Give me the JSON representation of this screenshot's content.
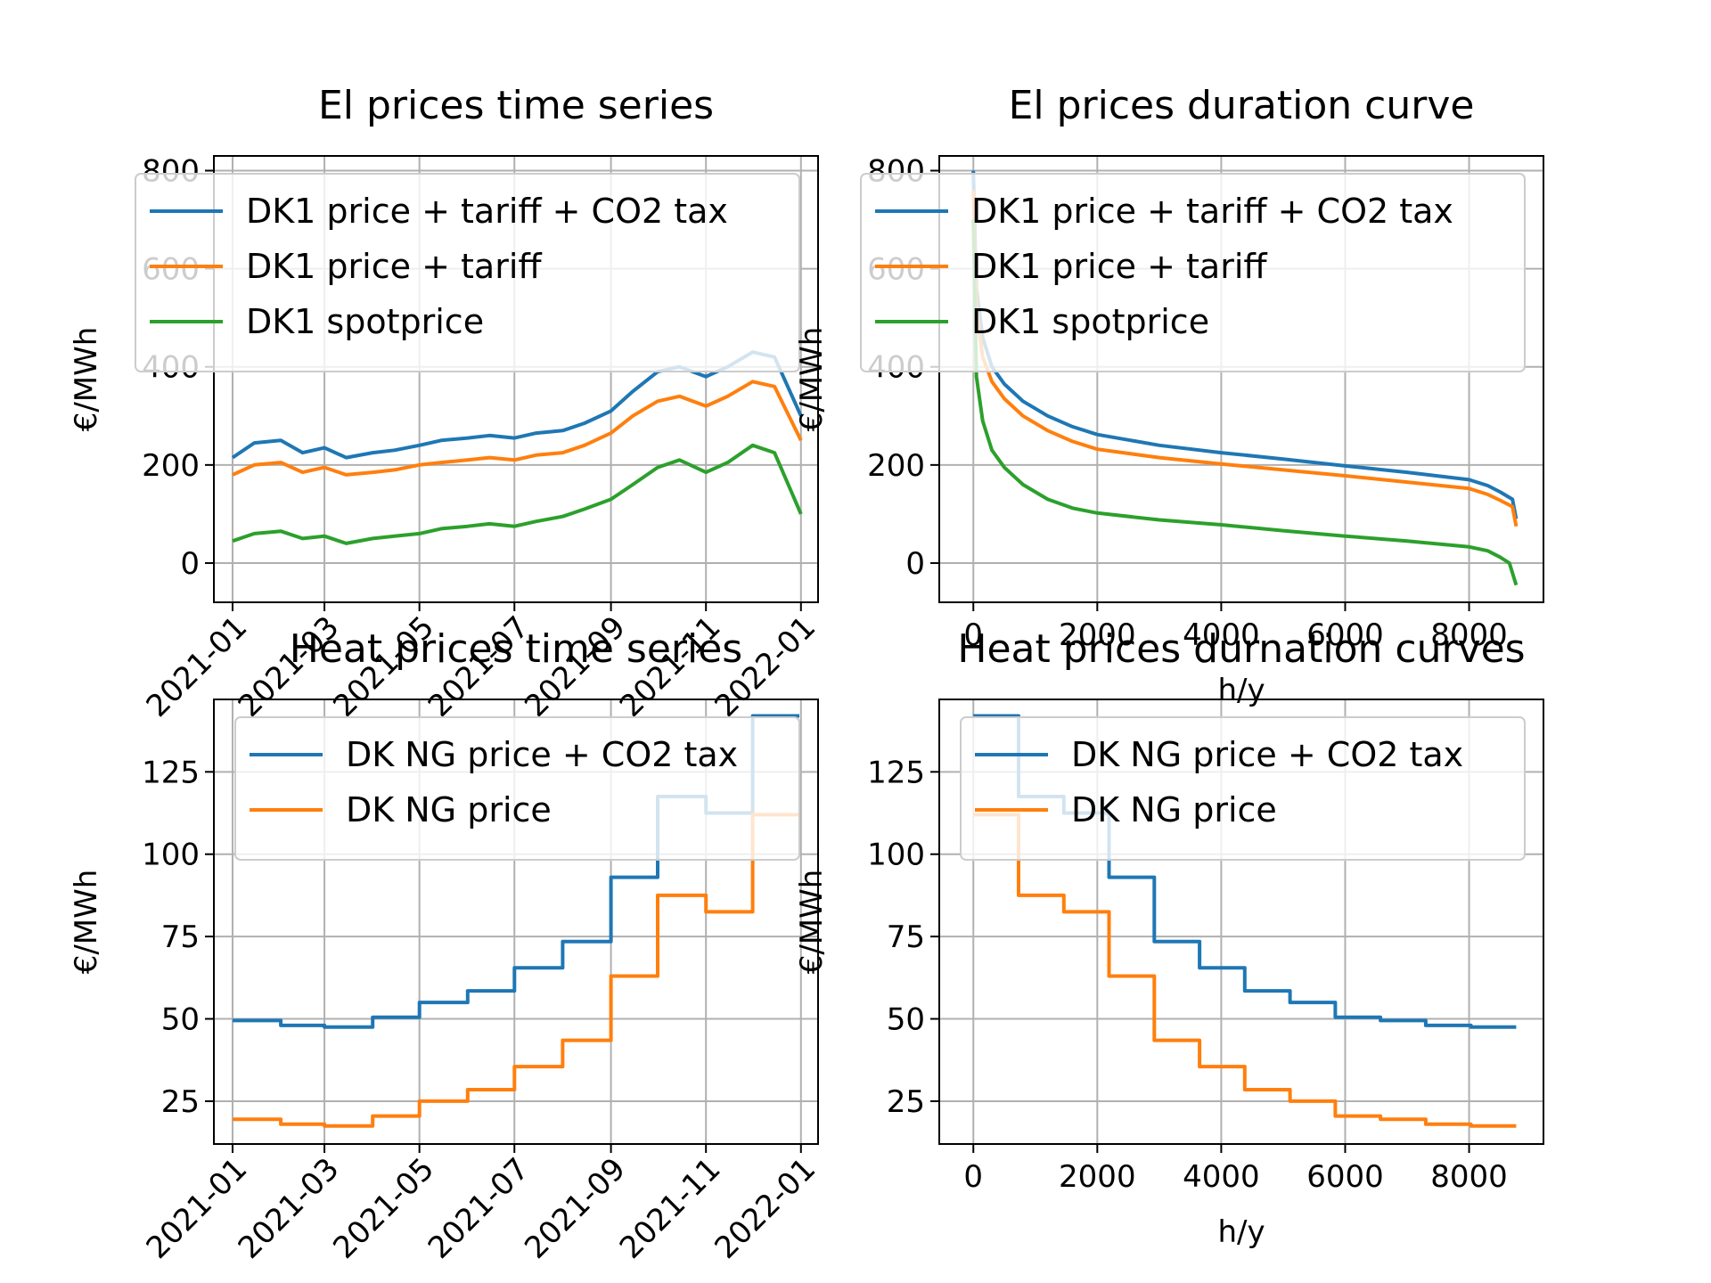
{
  "figure": {
    "colors": {
      "blue": "#1f77b4",
      "orange": "#ff7f0e",
      "green": "#2ca02c",
      "grid": "#b0b0b0"
    }
  },
  "chart_data": [
    {
      "type": "line",
      "title": "El prices time series",
      "xlabel": "",
      "ylabel": "€/MWh",
      "x_type": "date",
      "xlim": [
        "2020-12-20",
        "2022-01-12"
      ],
      "ylim": [
        -80,
        830
      ],
      "x_ticks": [
        "2021-01",
        "2021-03",
        "2021-05",
        "2021-07",
        "2021-09",
        "2021-11",
        "2022-01"
      ],
      "y_ticks": [
        0,
        200,
        400,
        600,
        800
      ],
      "grid": true,
      "legend_position": "top",
      "series": [
        {
          "name": "DK1 price + tariff + CO2 tax",
          "color": "#1f77b4",
          "x": [
            "2021-01-01",
            "2021-01-15",
            "2021-02-01",
            "2021-02-15",
            "2021-03-01",
            "2021-03-15",
            "2021-04-01",
            "2021-04-15",
            "2021-05-01",
            "2021-05-15",
            "2021-06-01",
            "2021-06-15",
            "2021-07-01",
            "2021-07-15",
            "2021-08-01",
            "2021-08-15",
            "2021-09-01",
            "2021-09-15",
            "2021-10-01",
            "2021-10-15",
            "2021-11-01",
            "2021-11-15",
            "2021-12-01",
            "2021-12-15",
            "2022-01-01"
          ],
          "y": [
            215,
            245,
            250,
            225,
            235,
            215,
            225,
            230,
            240,
            250,
            255,
            260,
            255,
            265,
            270,
            285,
            310,
            350,
            390,
            400,
            380,
            400,
            430,
            420,
            300
          ]
        },
        {
          "name": "DK1 price + tariff",
          "color": "#ff7f0e",
          "x": [
            "2021-01-01",
            "2021-01-15",
            "2021-02-01",
            "2021-02-15",
            "2021-03-01",
            "2021-03-15",
            "2021-04-01",
            "2021-04-15",
            "2021-05-01",
            "2021-05-15",
            "2021-06-01",
            "2021-06-15",
            "2021-07-01",
            "2021-07-15",
            "2021-08-01",
            "2021-08-15",
            "2021-09-01",
            "2021-09-15",
            "2021-10-01",
            "2021-10-15",
            "2021-11-01",
            "2021-11-15",
            "2021-12-01",
            "2021-12-15",
            "2022-01-01"
          ],
          "y": [
            180,
            200,
            205,
            185,
            195,
            180,
            185,
            190,
            200,
            205,
            210,
            215,
            210,
            220,
            225,
            240,
            265,
            300,
            330,
            340,
            320,
            340,
            370,
            360,
            250
          ]
        },
        {
          "name": "DK1 spotprice",
          "color": "#2ca02c",
          "x": [
            "2021-01-01",
            "2021-01-15",
            "2021-02-01",
            "2021-02-15",
            "2021-03-01",
            "2021-03-15",
            "2021-04-01",
            "2021-04-15",
            "2021-05-01",
            "2021-05-15",
            "2021-06-01",
            "2021-06-15",
            "2021-07-01",
            "2021-07-15",
            "2021-08-01",
            "2021-08-15",
            "2021-09-01",
            "2021-09-15",
            "2021-10-01",
            "2021-10-15",
            "2021-11-01",
            "2021-11-15",
            "2021-12-01",
            "2021-12-15",
            "2022-01-01"
          ],
          "y": [
            45,
            60,
            65,
            50,
            55,
            40,
            50,
            55,
            60,
            70,
            75,
            80,
            75,
            85,
            95,
            110,
            130,
            160,
            195,
            210,
            185,
            205,
            240,
            225,
            100
          ]
        }
      ]
    },
    {
      "type": "line",
      "title": "El prices duration curve",
      "xlabel": "h/y",
      "ylabel": "€/MWh",
      "xlim": [
        -550,
        9200
      ],
      "ylim": [
        -80,
        830
      ],
      "x_ticks": [
        0,
        2000,
        4000,
        6000,
        8000
      ],
      "y_ticks": [
        0,
        200,
        400,
        600,
        800
      ],
      "grid": true,
      "legend_position": "top",
      "series": [
        {
          "name": "DK1 price + tariff + CO2 tax",
          "color": "#1f77b4",
          "x": [
            0,
            50,
            150,
            300,
            500,
            800,
            1200,
            1600,
            2000,
            3000,
            4000,
            5000,
            6000,
            7000,
            8000,
            8300,
            8500,
            8700,
            8760
          ],
          "y": [
            800,
            560,
            460,
            400,
            365,
            330,
            300,
            278,
            262,
            240,
            225,
            212,
            198,
            185,
            170,
            158,
            145,
            130,
            90
          ]
        },
        {
          "name": "DK1 price + tariff",
          "color": "#ff7f0e",
          "x": [
            0,
            50,
            150,
            300,
            500,
            800,
            1200,
            1600,
            2000,
            3000,
            4000,
            5000,
            6000,
            7000,
            8000,
            8300,
            8500,
            8700,
            8760
          ],
          "y": [
            760,
            520,
            420,
            370,
            335,
            300,
            270,
            248,
            232,
            215,
            202,
            190,
            178,
            165,
            152,
            140,
            128,
            115,
            75
          ]
        },
        {
          "name": "DK1 spotprice",
          "color": "#2ca02c",
          "x": [
            0,
            50,
            150,
            300,
            500,
            800,
            1200,
            1600,
            2000,
            3000,
            4000,
            5000,
            6000,
            7000,
            8000,
            8300,
            8500,
            8650,
            8760
          ],
          "y": [
            700,
            380,
            290,
            230,
            195,
            160,
            130,
            112,
            102,
            88,
            78,
            66,
            55,
            45,
            33,
            25,
            12,
            0,
            -45
          ]
        }
      ]
    },
    {
      "type": "line",
      "title": "Heat prices time series",
      "xlabel": "",
      "ylabel": "€/MWh",
      "x_type": "date",
      "xlim": [
        "2020-12-20",
        "2022-01-12"
      ],
      "ylim": [
        12,
        147
      ],
      "x_ticks": [
        "2021-01",
        "2021-03",
        "2021-05",
        "2021-07",
        "2021-09",
        "2021-11",
        "2022-01"
      ],
      "y_ticks": [
        25,
        50,
        75,
        100,
        125
      ],
      "grid": true,
      "legend_position": "top",
      "step": true,
      "series": [
        {
          "name": "DK NG price + CO2 tax",
          "color": "#1f77b4",
          "x": [
            "2021-01-01",
            "2021-02-01",
            "2021-03-01",
            "2021-04-01",
            "2021-05-01",
            "2021-06-01",
            "2021-07-01",
            "2021-08-01",
            "2021-09-01",
            "2021-10-01",
            "2021-11-01",
            "2021-12-01",
            "2021-12-31"
          ],
          "y": [
            49.5,
            48,
            47.5,
            50.5,
            55,
            58.5,
            65.5,
            73.5,
            93,
            117.5,
            112.5,
            142,
            142
          ]
        },
        {
          "name": "DK NG price",
          "color": "#ff7f0e",
          "x": [
            "2021-01-01",
            "2021-02-01",
            "2021-03-01",
            "2021-04-01",
            "2021-05-01",
            "2021-06-01",
            "2021-07-01",
            "2021-08-01",
            "2021-09-01",
            "2021-10-01",
            "2021-11-01",
            "2021-12-01",
            "2021-12-31"
          ],
          "y": [
            19.5,
            18,
            17.5,
            20.5,
            25,
            28.5,
            35.5,
            43.5,
            63,
            87.5,
            82.5,
            112,
            112
          ]
        }
      ]
    },
    {
      "type": "line",
      "title": "Heat prices durnation curves",
      "xlabel": "h/y",
      "ylabel": "€/MWh",
      "xlim": [
        -550,
        9200
      ],
      "ylim": [
        12,
        147
      ],
      "x_ticks": [
        0,
        2000,
        4000,
        6000,
        8000
      ],
      "y_ticks": [
        25,
        50,
        75,
        100,
        125
      ],
      "grid": true,
      "legend_position": "top",
      "step": true,
      "series": [
        {
          "name": "DK NG price + CO2 tax",
          "color": "#1f77b4",
          "x": [
            0,
            730,
            1460,
            2190,
            2920,
            3650,
            4380,
            5110,
            5840,
            6570,
            7300,
            8030,
            8760
          ],
          "y": [
            142,
            117.5,
            112.5,
            93,
            73.5,
            65.5,
            58.5,
            55,
            50.5,
            49.5,
            48,
            47.5,
            47.5
          ]
        },
        {
          "name": "DK NG price",
          "color": "#ff7f0e",
          "x": [
            0,
            730,
            1460,
            2190,
            2920,
            3650,
            4380,
            5110,
            5840,
            6570,
            7300,
            8030,
            8760
          ],
          "y": [
            112,
            87.5,
            82.5,
            63,
            43.5,
            35.5,
            28.5,
            25,
            20.5,
            19.5,
            18,
            17.5,
            17.5
          ]
        }
      ]
    }
  ]
}
